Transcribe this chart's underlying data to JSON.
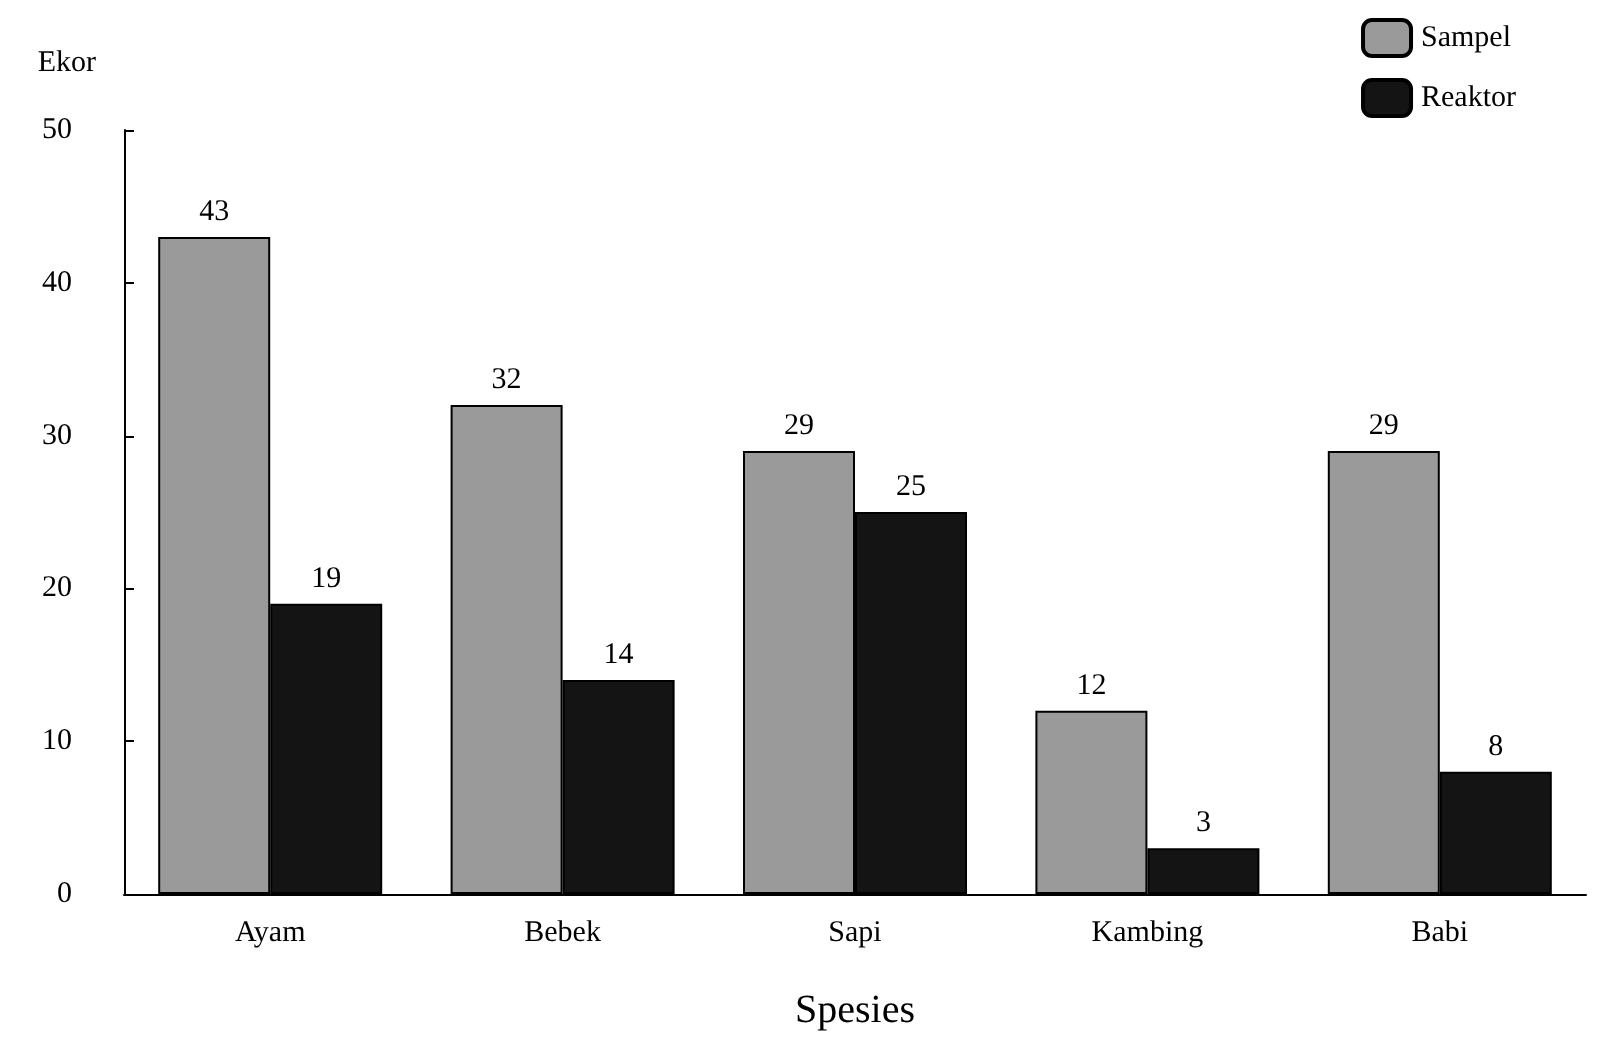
{
  "chart_data": {
    "type": "bar",
    "xlabel": "Spesies",
    "ylabel": "Ekor",
    "categories": [
      "Ayam",
      "Bebek",
      "Sapi",
      "Kambing",
      "Babi"
    ],
    "series": [
      {
        "name": "Sampel",
        "color": "#9a9a9a",
        "values": [
          43,
          32,
          29,
          12,
          29
        ]
      },
      {
        "name": "Reaktor",
        "color": "#141414",
        "values": [
          19,
          14,
          25,
          3,
          8
        ]
      }
    ],
    "ylim": [
      0,
      50
    ],
    "yticks": [
      0,
      10,
      20,
      30,
      40,
      50
    ],
    "grid": false,
    "legend": "top right",
    "data_labels": true
  }
}
